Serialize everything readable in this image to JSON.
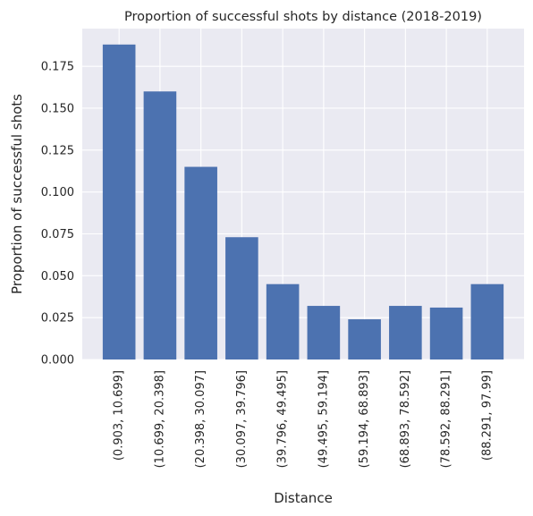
{
  "chart_data": {
    "type": "bar",
    "title": "Proportion of successful shots by distance (2018-2019)",
    "xlabel": "Distance",
    "ylabel": "Proportion of successful shots",
    "categories": [
      "(0.903, 10.699]",
      "(10.699, 20.398]",
      "(20.398, 30.097]",
      "(30.097, 39.796]",
      "(39.796, 49.495]",
      "(49.495, 59.194]",
      "(59.194, 68.893]",
      "(68.893, 78.592]",
      "(78.592, 88.291]",
      "(88.291, 97.99]"
    ],
    "values": [
      0.188,
      0.16,
      0.115,
      0.073,
      0.045,
      0.032,
      0.024,
      0.032,
      0.031,
      0.045
    ],
    "ylim": [
      0,
      0.1975
    ],
    "yticks": [
      0.0,
      0.025,
      0.05,
      0.075,
      0.1,
      0.125,
      0.15,
      0.175
    ],
    "ytick_labels": [
      "0.000",
      "0.025",
      "0.050",
      "0.075",
      "0.100",
      "0.125",
      "0.150",
      "0.175"
    ],
    "grid": true,
    "colors": {
      "bar": "#4c72b0",
      "background": "#eaeaf2",
      "grid": "#ffffff"
    }
  }
}
